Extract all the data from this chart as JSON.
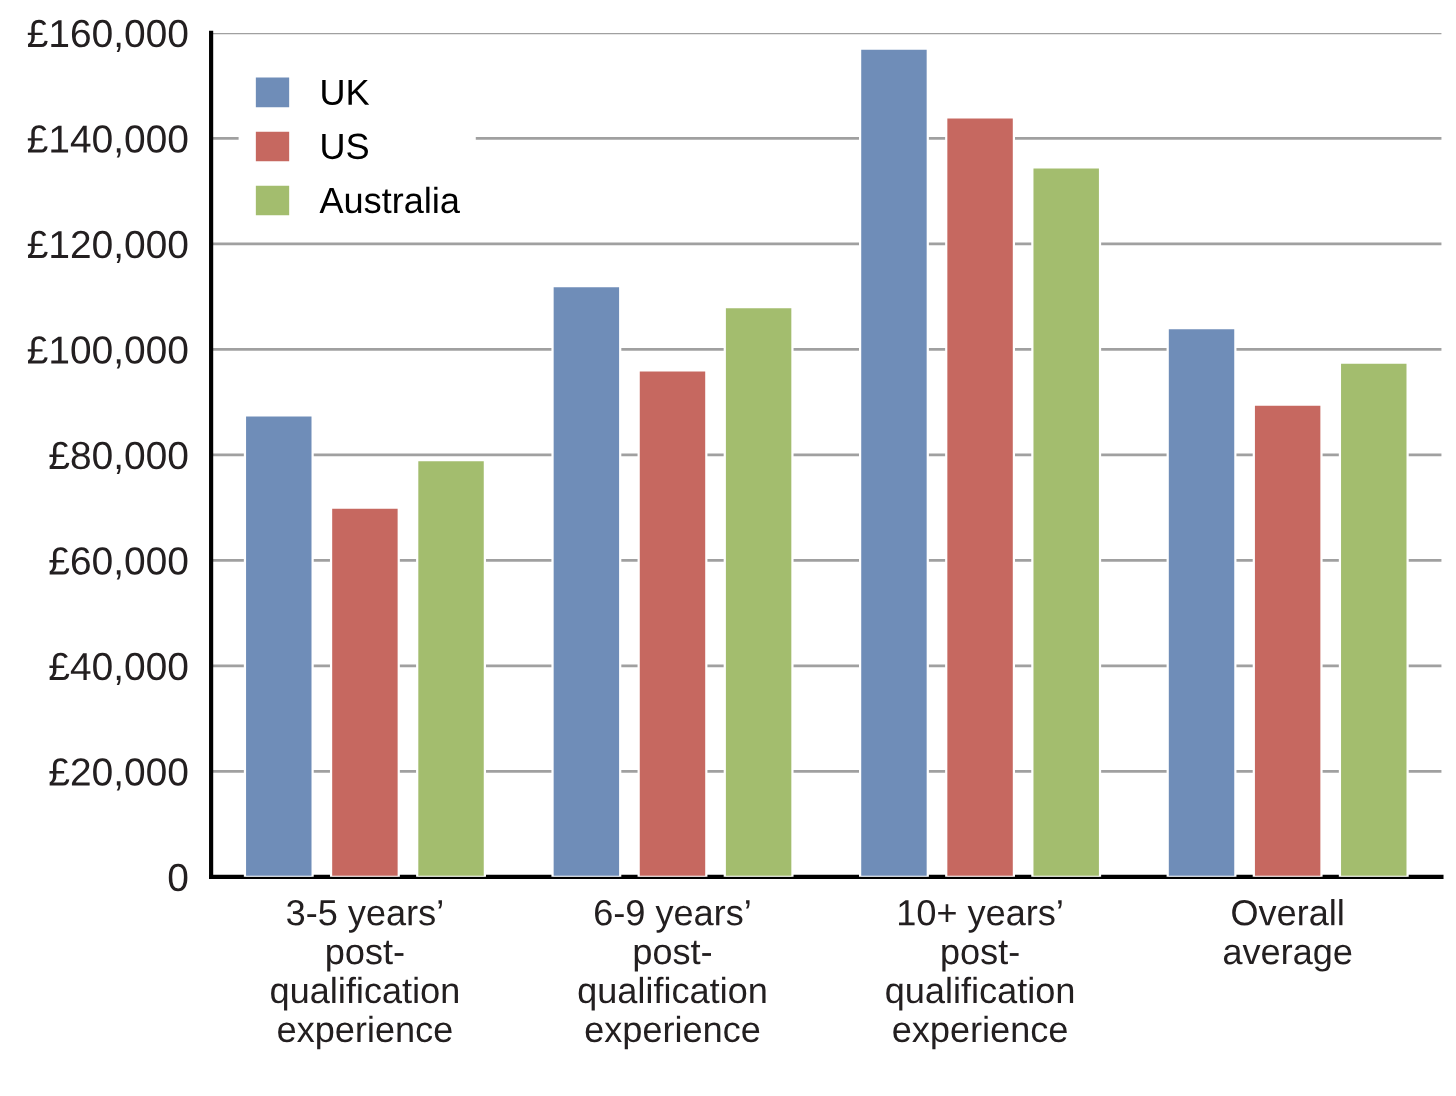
{
  "chart_data": {
    "type": "bar",
    "categories": [
      "3-5 years’\npost-\nqualification\nexperience",
      "6-9 years’\npost-\nqualification\nexperience",
      "10+ years’\npost-\nqualification\nexperience",
      "Overall\naverage"
    ],
    "series": [
      {
        "name": "UK",
        "color": "#6f8db8",
        "values": [
          87500,
          112000,
          157000,
          104000
        ]
      },
      {
        "name": "US",
        "color": "#c66860",
        "values": [
          70000,
          96000,
          144000,
          89500
        ]
      },
      {
        "name": "Australia",
        "color": "#a3bd6e",
        "values": [
          79000,
          108000,
          134500,
          97500
        ]
      }
    ],
    "ylim": [
      0,
      160000
    ],
    "yticks": [
      {
        "value": 0,
        "label": "0"
      },
      {
        "value": 20000,
        "label": "£20,000"
      },
      {
        "value": 40000,
        "label": "£40,000"
      },
      {
        "value": 60000,
        "label": "£60,000"
      },
      {
        "value": 80000,
        "label": "£80,000"
      },
      {
        "value": 100000,
        "label": "£100,000"
      },
      {
        "value": 120000,
        "label": "£120,000"
      },
      {
        "value": 140000,
        "label": "£140,000"
      },
      {
        "value": 160000,
        "label": "£160,000"
      }
    ],
    "grid": "y",
    "legend": "top left"
  }
}
